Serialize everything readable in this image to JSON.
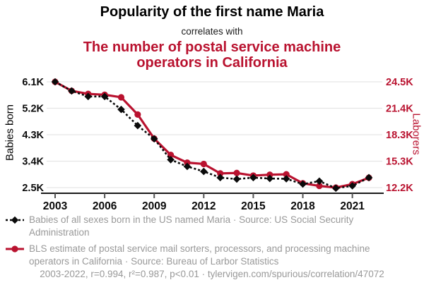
{
  "colors": {
    "red": "#b9122f",
    "black": "#0a0a0a",
    "gray_text": "#999999",
    "gridline": "#e5e5e5",
    "axis_line": "#1a1a1a",
    "tick_mark": "#555555"
  },
  "header": {
    "title_primary": "Popularity of the first name Maria",
    "connector": "correlates with",
    "title_secondary": "The number of postal service machine operators in California"
  },
  "chart_data": {
    "type": "line",
    "x": [
      2003,
      2004,
      2005,
      2006,
      2007,
      2008,
      2009,
      2010,
      2011,
      2012,
      2013,
      2014,
      2015,
      2016,
      2017,
      2018,
      2019,
      2020,
      2021,
      2022
    ],
    "x_ticks": [
      2003,
      2006,
      2009,
      2012,
      2015,
      2018,
      2021
    ],
    "grid": "horizontal",
    "legend_position": "below",
    "left_axis": {
      "label": "Babies born",
      "tick_labels": [
        "6.1K",
        "5.2K",
        "4.3K",
        "3.4K",
        "2.5K"
      ],
      "tick_values": [
        6100,
        5200,
        4300,
        3400,
        2500
      ],
      "range": [
        2500,
        6100
      ]
    },
    "right_axis": {
      "label": "Laborers",
      "tick_labels": [
        "24.5K",
        "21.4K",
        "18.3K",
        "15.3K",
        "12.2K"
      ],
      "tick_values": [
        24500,
        21400,
        18300,
        15300,
        12200
      ],
      "range": [
        12200,
        24500
      ]
    },
    "series": [
      {
        "name": "Babies of all sexes born in the US named Maria",
        "axis": "left",
        "style": "dashed-diamond",
        "color": "#0a0a0a",
        "values": [
          6100,
          5790,
          5600,
          5600,
          5160,
          4610,
          4160,
          3450,
          3220,
          3050,
          2840,
          2790,
          2840,
          2810,
          2800,
          2620,
          2720,
          2480,
          2560,
          2840
        ]
      },
      {
        "name": "BLS estimate of postal service mail sorters, processors, and processing machine operators in California",
        "axis": "right",
        "style": "solid-circle",
        "color": "#b9122f",
        "values": [
          24500,
          23450,
          23100,
          23000,
          22700,
          20700,
          17900,
          16000,
          15100,
          14950,
          13850,
          13900,
          13600,
          13700,
          13750,
          12700,
          12400,
          12200,
          12600,
          13350
        ]
      }
    ]
  },
  "legend": {
    "items": [
      {
        "label": "Babies of all sexes born in the US named Maria · Source: US Social Security Administration",
        "marker": "black-diamond-dashed-line"
      },
      {
        "label": "BLS estimate of postal service mail sorters, processors, and processing machine operators in California · Source: Bureau of Larbor Statistics",
        "marker": "red-circle-solid-line"
      }
    ]
  },
  "footer": {
    "stats_and_url": "2003-2022, r=0.994, r²=0.987, p<0.01 · tylervigen.com/spurious/correlation/47072"
  }
}
